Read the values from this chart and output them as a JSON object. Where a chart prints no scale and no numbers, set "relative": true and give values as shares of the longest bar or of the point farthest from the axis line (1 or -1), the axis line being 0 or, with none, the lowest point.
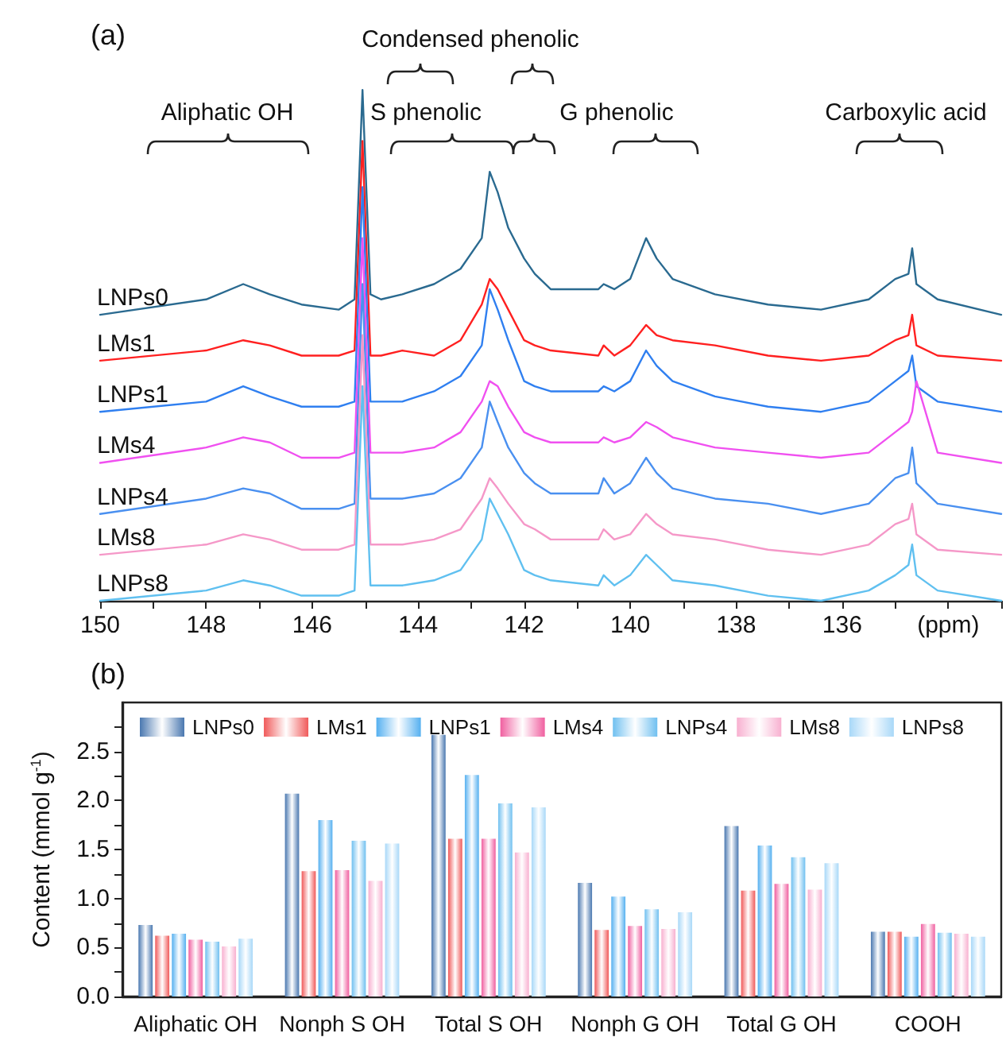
{
  "chart_data": [
    {
      "type": "line",
      "title": "(a)",
      "relative": true,
      "tick_labels": "x",
      "marker": "none",
      "line_style": "solid",
      "xlim": [
        150,
        133
      ],
      "xticks": [
        150,
        {
          "value": 149,
          "label": null
        },
        148,
        {
          "value": 147,
          "label": null
        },
        146,
        {
          "value": 145,
          "label": null
        },
        144,
        {
          "value": 143,
          "label": null
        },
        142,
        {
          "value": 141,
          "label": null
        },
        140,
        {
          "value": 139,
          "label": null
        },
        138,
        {
          "value": 137,
          "label": null
        },
        136,
        {
          "value": 135,
          "label": null
        },
        {
          "value": 134,
          "label": "(ppm)"
        },
        {
          "value": 133,
          "label": null
        }
      ],
      "annotations": [
        "Aliphatic OH",
        "Condensed phenolic",
        "S phenolic",
        "G phenolic",
        "Carboxylic acid"
      ],
      "x": [
        150,
        148,
        147.3,
        146.8,
        146.2,
        145.5,
        145.2,
        145.05,
        144.9,
        144.7,
        144.3,
        143.7,
        143.2,
        142.8,
        142.65,
        142.5,
        142.3,
        142.0,
        141.8,
        141.5,
        140.6,
        140.5,
        140.3,
        140.0,
        139.7,
        139.5,
        139.2,
        138.4,
        137.4,
        136.4,
        135.5,
        135.0,
        134.75,
        134.68,
        134.6,
        134.2,
        133.0
      ],
      "series": [
        {
          "name": "LNPs0",
          "color": "#2a6a90",
          "values": [
            0.56,
            0.59,
            0.62,
            0.6,
            0.58,
            0.57,
            0.59,
            1,
            0.6,
            0.59,
            0.6,
            0.62,
            0.65,
            0.71,
            0.84,
            0.8,
            0.73,
            0.67,
            0.64,
            0.61,
            0.61,
            0.62,
            0.61,
            0.63,
            0.71,
            0.67,
            0.63,
            0.6,
            0.58,
            0.57,
            0.59,
            0.63,
            0.64,
            0.69,
            0.62,
            0.59,
            0.56
          ]
        },
        {
          "name": "LMs1",
          "color": "#ff2020",
          "values": [
            0.47,
            0.49,
            0.51,
            0.5,
            0.48,
            0.48,
            0.49,
            0.9,
            0.48,
            0.48,
            0.49,
            0.48,
            0.51,
            0.58,
            0.63,
            0.61,
            0.57,
            0.51,
            0.5,
            0.49,
            0.48,
            0.5,
            0.48,
            0.5,
            0.54,
            0.52,
            0.51,
            0.5,
            0.48,
            0.47,
            0.48,
            0.51,
            0.52,
            0.56,
            0.5,
            0.48,
            0.47
          ]
        },
        {
          "name": "LNPs1",
          "color": "#2f7ff0",
          "values": [
            0.37,
            0.39,
            0.42,
            0.4,
            0.38,
            0.38,
            0.39,
            0.81,
            0.39,
            0.39,
            0.39,
            0.41,
            0.44,
            0.5,
            0.61,
            0.57,
            0.51,
            0.43,
            0.42,
            0.41,
            0.41,
            0.42,
            0.41,
            0.43,
            0.49,
            0.46,
            0.43,
            0.4,
            0.38,
            0.37,
            0.39,
            0.43,
            0.45,
            0.48,
            0.42,
            0.39,
            0.37
          ]
        },
        {
          "name": "LMs4",
          "color": "#f050f0",
          "values": [
            0.27,
            0.3,
            0.32,
            0.31,
            0.28,
            0.28,
            0.29,
            0.71,
            0.29,
            0.29,
            0.29,
            0.3,
            0.33,
            0.39,
            0.43,
            0.42,
            0.38,
            0.33,
            0.32,
            0.31,
            0.31,
            0.32,
            0.31,
            0.32,
            0.35,
            0.34,
            0.32,
            0.3,
            0.29,
            0.28,
            0.29,
            0.33,
            0.35,
            0.37,
            0.43,
            0.29,
            0.27
          ]
        },
        {
          "name": "LNPs4",
          "color": "#4a90f0",
          "values": [
            0.17,
            0.2,
            0.22,
            0.21,
            0.18,
            0.18,
            0.19,
            0.62,
            0.2,
            0.2,
            0.2,
            0.21,
            0.24,
            0.3,
            0.39,
            0.35,
            0.3,
            0.25,
            0.23,
            0.21,
            0.21,
            0.24,
            0.21,
            0.23,
            0.28,
            0.25,
            0.22,
            0.2,
            0.19,
            0.17,
            0.19,
            0.24,
            0.25,
            0.3,
            0.23,
            0.19,
            0.17
          ]
        },
        {
          "name": "LMs8",
          "color": "#f598c8",
          "values": [
            0.09,
            0.11,
            0.13,
            0.12,
            0.1,
            0.1,
            0.11,
            0.52,
            0.11,
            0.11,
            0.11,
            0.12,
            0.14,
            0.2,
            0.24,
            0.22,
            0.19,
            0.15,
            0.14,
            0.12,
            0.12,
            0.14,
            0.12,
            0.13,
            0.17,
            0.15,
            0.13,
            0.12,
            0.1,
            0.09,
            0.11,
            0.15,
            0.16,
            0.19,
            0.13,
            0.1,
            0.09
          ]
        },
        {
          "name": "LNPs8",
          "color": "#60c0f0",
          "values": [
            0,
            0.02,
            0.04,
            0.03,
            0.01,
            0.01,
            0.02,
            0.42,
            0.03,
            0.03,
            0.03,
            0.04,
            0.06,
            0.12,
            0.2,
            0.17,
            0.13,
            0.06,
            0.05,
            0.04,
            0.03,
            0.05,
            0.03,
            0.05,
            0.09,
            0.07,
            0.04,
            0.03,
            0.01,
            0,
            0.02,
            0.05,
            0.07,
            0.11,
            0.05,
            0.02,
            0
          ]
        }
      ]
    },
    {
      "type": "bar",
      "title": "(b)",
      "ylabel": "Content (mmol g$^{-1}$)",
      "legend": "top left",
      "categories": [
        "Aliphatic OH",
        "Nonph S OH",
        "Total S OH",
        "Nonph G OH",
        "Total G OH",
        "COOH"
      ],
      "ylim": [
        0,
        3
      ],
      "yticks": [
        {
          "value": 0,
          "label": "0.0"
        },
        {
          "value": 0.25,
          "label": null
        },
        0.5,
        {
          "value": 0.75,
          "label": null
        },
        {
          "value": 1,
          "label": "1.0"
        },
        {
          "value": 1.25,
          "label": null
        },
        1.5,
        {
          "value": 1.75,
          "label": null
        },
        {
          "value": 2,
          "label": "2.0"
        },
        {
          "value": 2.25,
          "label": null
        },
        2.5,
        {
          "value": 2.75,
          "label": null
        }
      ],
      "series": [
        {
          "name": "LNPs0",
          "color": "#4a78b0",
          "values": [
            0.73,
            2.07,
            2.67,
            1.16,
            1.74,
            0.66
          ]
        },
        {
          "name": "LMs1",
          "color": "#f05a5a",
          "values": [
            0.62,
            1.28,
            1.61,
            0.68,
            1.08,
            0.66
          ]
        },
        {
          "name": "LNPs1",
          "color": "#55b0f0",
          "values": [
            0.64,
            1.8,
            2.26,
            1.02,
            1.54,
            0.61
          ]
        },
        {
          "name": "LMs4",
          "color": "#f060a0",
          "values": [
            0.58,
            1.29,
            1.61,
            0.72,
            1.15,
            0.74
          ]
        },
        {
          "name": "LNPs4",
          "color": "#70c0f0",
          "values": [
            0.56,
            1.59,
            1.97,
            0.89,
            1.42,
            0.65
          ]
        },
        {
          "name": "LMs8",
          "color": "#f8b0d0",
          "values": [
            0.51,
            1.18,
            1.47,
            0.69,
            1.09,
            0.64
          ]
        },
        {
          "name": "LNPs8",
          "color": "#a8d8f8",
          "values": [
            0.59,
            1.56,
            1.93,
            0.86,
            1.36,
            0.61
          ]
        }
      ]
    }
  ]
}
